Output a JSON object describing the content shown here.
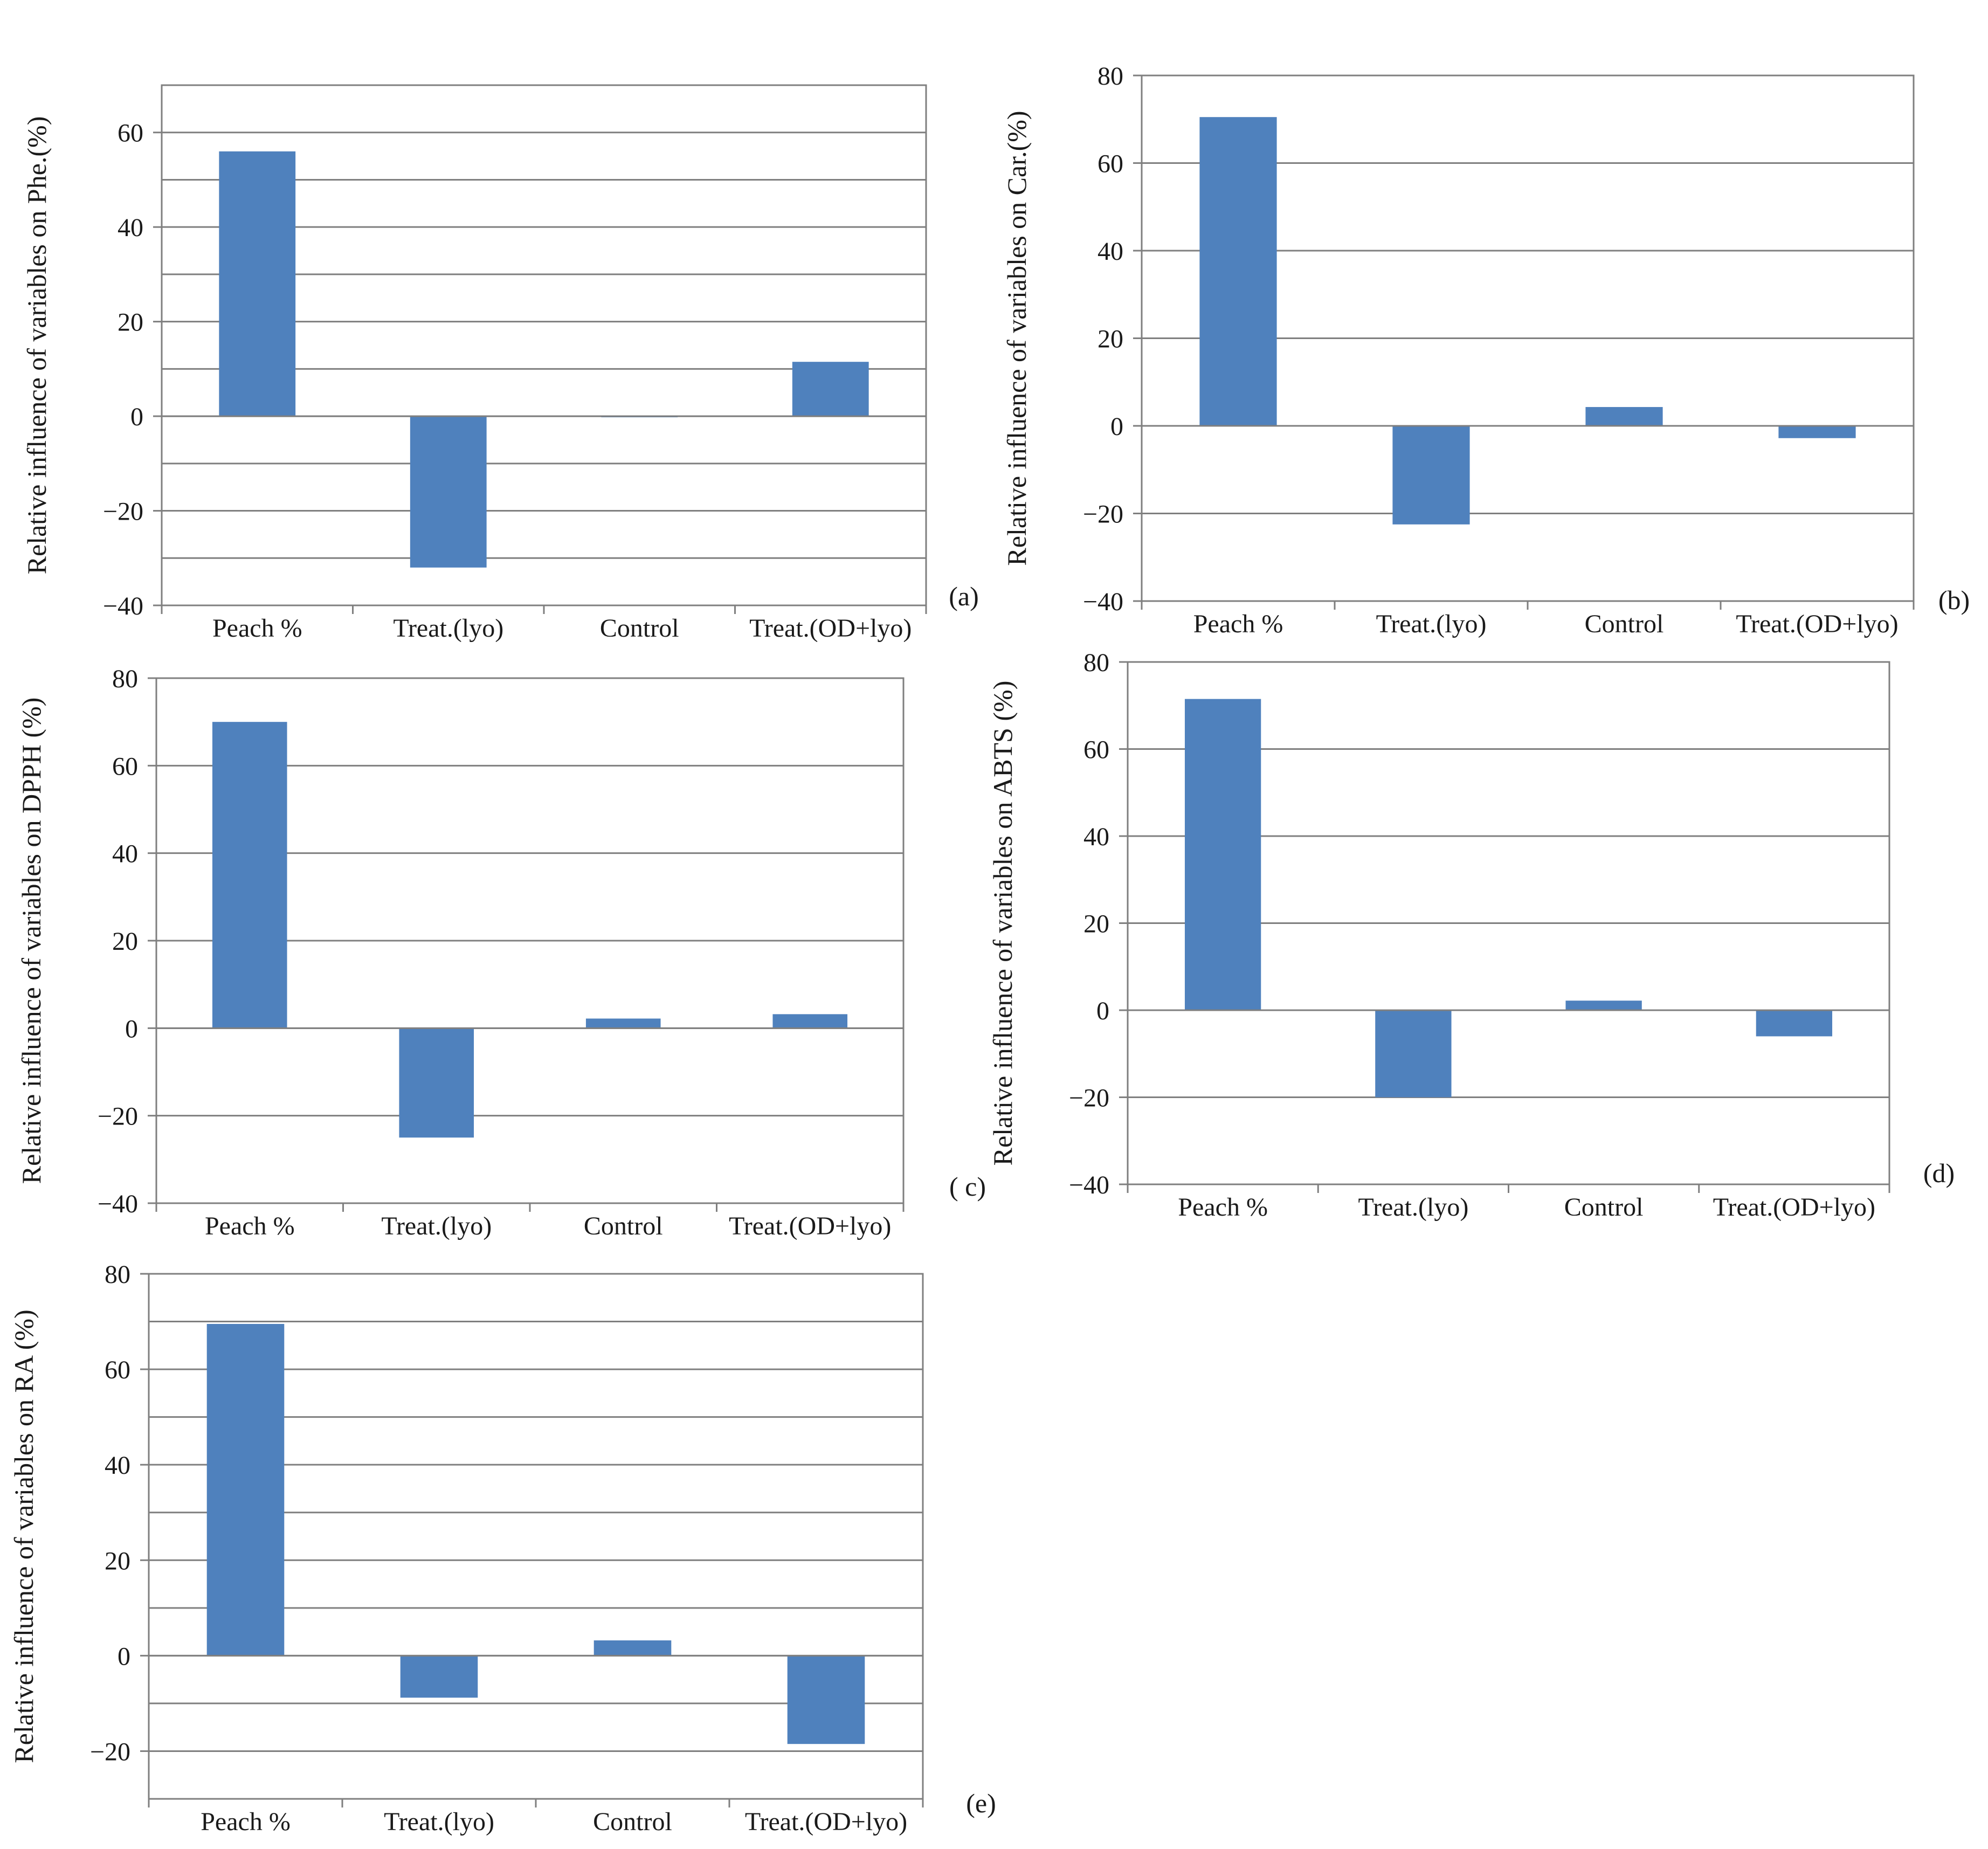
{
  "chart_data": [
    {
      "id": "a",
      "type": "bar",
      "panel_label": "(a)",
      "categories": [
        "Peach %",
        "Treat.(lyo)",
        "Control",
        "Treat.(OD+lyo)"
      ],
      "values": [
        56,
        -32,
        -0.2,
        11.5
      ],
      "ylabel": "Relative influence of variables on Phe.(%)",
      "ylim": [
        -40,
        70
      ],
      "yticks": [
        "−40",
        "−20",
        "0",
        "20",
        "40",
        "60"
      ],
      "grid": true,
      "bar_color": "#4f81bd"
    },
    {
      "id": "b",
      "type": "bar",
      "panel_label": "(b)",
      "categories": [
        "Peach %",
        "Treat.(lyo)",
        "Control",
        "Treat.(OD+lyo)"
      ],
      "values": [
        70.5,
        -22.5,
        4.3,
        -2.8
      ],
      "ylabel": "Relative influence of variables on Car.(%)",
      "ylim": [
        -40,
        80
      ],
      "yticks": [
        "−40",
        "−20",
        "0",
        "20",
        "40",
        "60",
        "80"
      ],
      "grid": true,
      "bar_color": "#4f81bd"
    },
    {
      "id": "c",
      "type": "bar",
      "panel_label": "( c)",
      "categories": [
        "Peach %",
        "Treat.(lyo)",
        "Control",
        "Treat.(OD+lyo)"
      ],
      "values": [
        70,
        -25,
        2.2,
        3.2
      ],
      "ylabel": "Relative influence of variables on DPPH (%)",
      "ylim": [
        -40,
        80
      ],
      "yticks": [
        "−40",
        "−20",
        "0",
        "20",
        "40",
        "60",
        "80"
      ],
      "grid": true,
      "bar_color": "#4f81bd"
    },
    {
      "id": "d",
      "type": "bar",
      "panel_label": "(d)",
      "categories": [
        "Peach %",
        "Treat.(lyo)",
        "Control",
        "Treat.(OD+lyo)"
      ],
      "values": [
        71.5,
        -20,
        2.2,
        -6
      ],
      "ylabel": "Relative influence of variables on ABTS (%)",
      "ylim": [
        -40,
        80
      ],
      "yticks": [
        "−40",
        "−20",
        "0",
        "20",
        "40",
        "60",
        "80"
      ],
      "grid": true,
      "bar_color": "#4f81bd"
    },
    {
      "id": "e",
      "type": "bar",
      "panel_label": "(e)",
      "categories": [
        "Peach %",
        "Treat.(lyo)",
        "Control",
        "Treat.(OD+lyo)"
      ],
      "values": [
        69.5,
        -8.8,
        3.2,
        -18.5
      ],
      "ylabel": "Relative influence of variables on RA (%)",
      "ylim": [
        -30,
        80
      ],
      "yticks": [
        "−20",
        "0",
        "20",
        "40",
        "60",
        "80"
      ],
      "grid": true,
      "bar_color": "#4f81bd"
    }
  ]
}
